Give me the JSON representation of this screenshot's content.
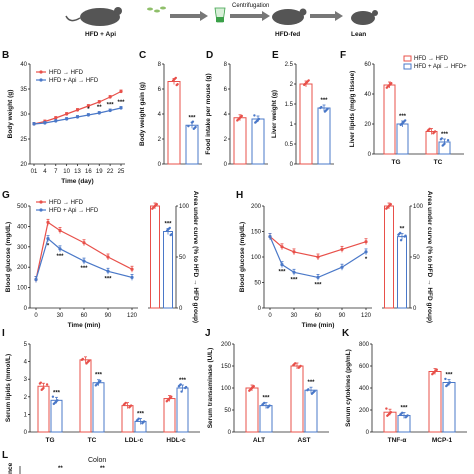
{
  "colors": {
    "hfd": "#e8504a",
    "api": "#4a78c8",
    "mouse": "#555555",
    "arrow": "#777777",
    "tube": "#3aa048",
    "pill": "#8fbf6a"
  },
  "schematic": {
    "label_left": "HFD + Api",
    "label_centrifuge": "Centrifugation",
    "label_mid": "HFD-fed",
    "label_right": "Lean"
  },
  "legend": {
    "hfd": "HFD → HFD",
    "api": "HFD + Api → HFD",
    "api_short": "HFD + Api → HFD+"
  },
  "letters": {
    "B": "B",
    "C": "C",
    "D": "D",
    "E": "E",
    "F": "F",
    "G": "G",
    "H": "H",
    "I": "I",
    "J": "J",
    "K": "K",
    "L": "L"
  },
  "L_label": "Colon",
  "L_ylabel": "nce",
  "L_stars": [
    "**",
    "**"
  ],
  "chart_data": [
    {
      "panel": "B",
      "type": "line",
      "xlabel": "Time (day)",
      "ylabel": "Body weight (g)",
      "ylim": [
        20,
        40
      ],
      "yticks": [
        20,
        25,
        30,
        35,
        40
      ],
      "x": [
        1,
        4,
        7,
        10,
        13,
        16,
        19,
        22,
        25
      ],
      "xticklabels": [
        "01",
        "4",
        "7",
        "10",
        "13",
        "16",
        "19",
        "22",
        "25"
      ],
      "series": [
        {
          "name": "HFD → HFD",
          "values": [
            28,
            28.5,
            29.2,
            30,
            30.8,
            31.6,
            32.4,
            33.4,
            34.5
          ]
        },
        {
          "name": "HFD + Api → HFD",
          "values": [
            28,
            28.2,
            28.6,
            29,
            29.4,
            29.8,
            30.2,
            30.7,
            31.2
          ]
        }
      ],
      "stars": [
        {
          "x": 16,
          "t": "*"
        },
        {
          "x": 19,
          "t": "**"
        },
        {
          "x": 22,
          "t": "***"
        },
        {
          "x": 25,
          "t": "***"
        }
      ]
    },
    {
      "panel": "C",
      "type": "bar",
      "ylabel": "Body weight gain (g)",
      "ylim": [
        0,
        8
      ],
      "yticks": [
        0,
        2,
        4,
        6,
        8
      ],
      "values": [
        6.6,
        3.1
      ],
      "stars": [
        "",
        "***"
      ]
    },
    {
      "panel": "D",
      "type": "bar",
      "ylabel": "Food intake per mouse (g)",
      "ylim": [
        0,
        8
      ],
      "yticks": [
        0,
        2,
        4,
        6,
        8
      ],
      "values": [
        3.7,
        3.6
      ],
      "stars": [
        "",
        ""
      ]
    },
    {
      "panel": "E",
      "type": "bar",
      "ylabel": "Liver weight (g)",
      "ylim": [
        0,
        2.5
      ],
      "yticks": [
        0.0,
        0.5,
        1.0,
        1.5,
        2.0,
        2.5
      ],
      "values": [
        2.0,
        1.4
      ],
      "stars": [
        "",
        "***"
      ]
    },
    {
      "panel": "F",
      "type": "bar",
      "ylabel": "Liver lipids (mg/g tissue)",
      "ylim": [
        0,
        60
      ],
      "yticks": [
        0,
        20,
        40,
        60
      ],
      "categories": [
        "TG",
        "TC"
      ],
      "series": [
        {
          "name": "HFD → HFD",
          "values": [
            46,
            15
          ]
        },
        {
          "name": "HFD + Api → HFD+",
          "values": [
            20,
            8
          ]
        }
      ],
      "stars": [
        "***",
        "***"
      ]
    },
    {
      "panel": "G",
      "type": "line",
      "xlabel": "Time (min)",
      "ylabel": "Blood glucose (mg/dL)",
      "ylim": [
        0,
        500
      ],
      "yticks": [
        0,
        100,
        200,
        300,
        400,
        500
      ],
      "x": [
        0,
        15,
        30,
        60,
        90,
        120
      ],
      "xticklabels": [
        "0",
        "30",
        "60",
        "90",
        "120"
      ],
      "series": [
        {
          "name": "HFD → HFD",
          "values": [
            140,
            420,
            380,
            320,
            250,
            190
          ]
        },
        {
          "name": "HFD + Api → HFD",
          "values": [
            140,
            340,
            290,
            230,
            180,
            150
          ]
        }
      ],
      "stars": [
        {
          "x": 15,
          "t": "*"
        },
        {
          "x": 30,
          "t": "***"
        },
        {
          "x": 60,
          "t": "***"
        },
        {
          "x": 90,
          "t": "***"
        }
      ],
      "auc": {
        "ylabel": "Area under curve (% to HFD → HFD group)",
        "ylim": [
          0,
          100
        ],
        "yticks": [
          0,
          50,
          100
        ],
        "values": [
          100,
          75
        ],
        "stars": [
          "",
          "***"
        ]
      }
    },
    {
      "panel": "H",
      "type": "line",
      "xlabel": "Time (min)",
      "ylabel": "Blood glucose (mg/dL)",
      "ylim": [
        0,
        200
      ],
      "yticks": [
        0,
        50,
        100,
        150,
        200
      ],
      "x": [
        0,
        15,
        30,
        60,
        90,
        120
      ],
      "xticklabels": [
        "0",
        "30",
        "60",
        "90",
        "120"
      ],
      "series": [
        {
          "name": "HFD → HFD",
          "values": [
            140,
            120,
            110,
            100,
            115,
            130
          ]
        },
        {
          "name": "HFD + Api → HFD",
          "values": [
            140,
            85,
            70,
            60,
            80,
            110
          ]
        }
      ],
      "stars": [
        {
          "x": 15,
          "t": "***"
        },
        {
          "x": 30,
          "t": "***"
        },
        {
          "x": 60,
          "t": "***"
        },
        {
          "x": 120,
          "t": "*"
        }
      ],
      "auc": {
        "ylabel": "Area under curve (% to HFD → HFD group)",
        "ylim": [
          0,
          100
        ],
        "yticks": [
          0,
          50,
          100
        ],
        "values": [
          100,
          70
        ],
        "stars": [
          "",
          "**"
        ]
      }
    },
    {
      "panel": "I",
      "type": "bar",
      "ylabel": "Serum lipids (mmol/L)",
      "ylim": [
        0,
        5
      ],
      "yticks": [
        0,
        1,
        2,
        3,
        4,
        5
      ],
      "categories": [
        "TG",
        "TC",
        "LDL-c",
        "HDL-c"
      ],
      "series": [
        {
          "name": "HFD → HFD",
          "values": [
            2.6,
            4.1,
            1.5,
            1.9
          ]
        },
        {
          "name": "HFD + Api → HFD+",
          "values": [
            1.8,
            2.8,
            0.6,
            2.5
          ]
        }
      ],
      "stars": [
        "***",
        "***",
        "***",
        "***"
      ]
    },
    {
      "panel": "J",
      "type": "bar",
      "ylabel": "Serum transaminase (U/L)",
      "ylim": [
        0,
        200
      ],
      "yticks": [
        0,
        50,
        100,
        150,
        200
      ],
      "categories": [
        "ALT",
        "AST"
      ],
      "series": [
        {
          "name": "HFD → HFD",
          "values": [
            100,
            150
          ]
        },
        {
          "name": "HFD + Api → HFD+",
          "values": [
            60,
            95
          ]
        }
      ],
      "stars": [
        "***",
        "***"
      ]
    },
    {
      "panel": "K",
      "type": "bar",
      "ylabel": "Serum cytokines (pg/mL)",
      "ylim": [
        0,
        800
      ],
      "yticks": [
        0,
        200,
        400,
        600,
        800
      ],
      "categories": [
        "TNF-α",
        "MCP-1"
      ],
      "series": [
        {
          "name": "HFD → HFD",
          "values": [
            180,
            550
          ]
        },
        {
          "name": "HFD + Api → HFD+",
          "values": [
            150,
            450
          ]
        }
      ],
      "stars": [
        "***",
        "***"
      ]
    }
  ]
}
